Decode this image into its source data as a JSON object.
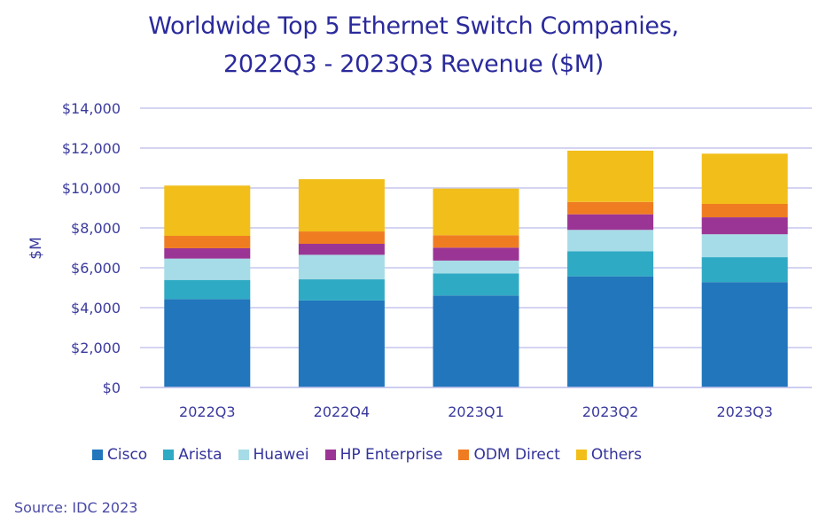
{
  "chart_data": {
    "type": "bar",
    "stacked": true,
    "title": "Worldwide Top 5 Ethernet Switch Companies,",
    "subtitle": "2022Q3 - 2023Q3 Revenue ($M)",
    "xlabel": "",
    "ylabel": "$M",
    "ylim": [
      0,
      14000
    ],
    "yticks": [
      0,
      2000,
      4000,
      6000,
      8000,
      10000,
      12000,
      14000
    ],
    "ytick_labels": [
      "$0",
      "$2,000",
      "$4,000",
      "$6,000",
      "$8,000",
      "$10,000",
      "$12,000",
      "$14,000"
    ],
    "grid": true,
    "legend_position": "bottom",
    "categories": [
      "2022Q3",
      "2022Q4",
      "2023Q1",
      "2023Q2",
      "2023Q3"
    ],
    "series": [
      {
        "name": "Cisco",
        "color": "#2176bc",
        "values": [
          4430,
          4360,
          4610,
          5570,
          5280
        ]
      },
      {
        "name": "Arista",
        "color": "#2faac4",
        "values": [
          960,
          1060,
          1110,
          1260,
          1250
        ]
      },
      {
        "name": "Huawei",
        "color": "#a6dce7",
        "values": [
          1070,
          1230,
          640,
          1070,
          1150
        ]
      },
      {
        "name": "HP Enterprise",
        "color": "#9b3595",
        "values": [
          520,
          550,
          650,
          780,
          850
        ]
      },
      {
        "name": "ODM Direct",
        "color": "#f07c22",
        "values": [
          620,
          620,
          620,
          620,
          670
        ]
      },
      {
        "name": "Others",
        "color": "#f2be1a",
        "values": [
          2520,
          2620,
          2340,
          2570,
          2520
        ]
      }
    ]
  },
  "source": "Source: IDC 2023"
}
